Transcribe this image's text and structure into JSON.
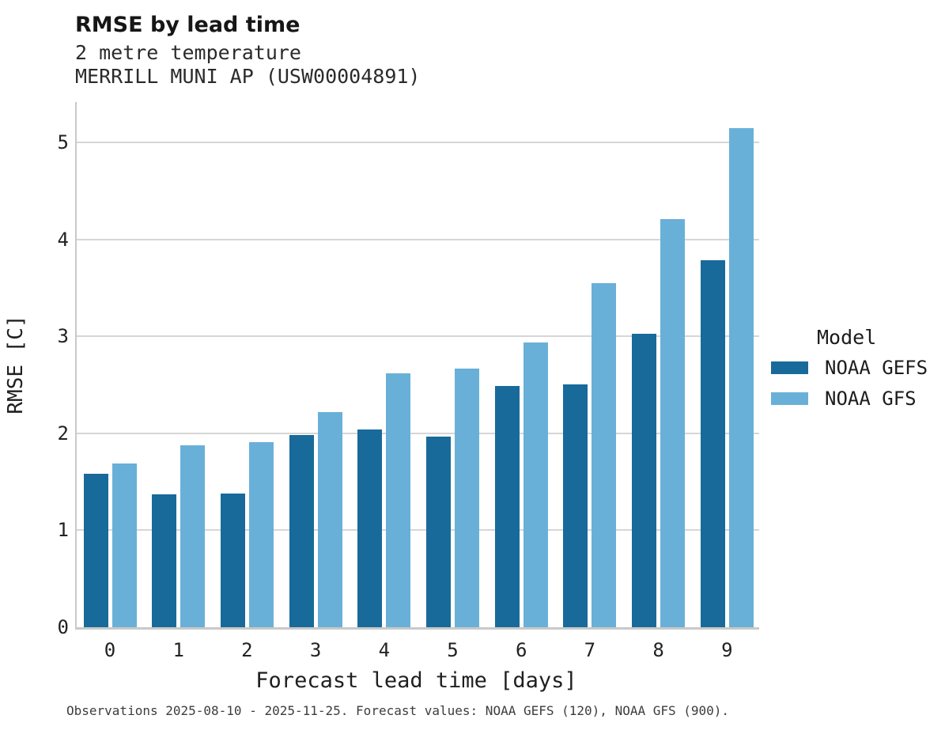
{
  "header": {
    "title": "RMSE by lead time",
    "subtitle_line1": "2 metre temperature",
    "subtitle_line2": "MERRILL MUNI AP (USW00004891)"
  },
  "chart_data": {
    "type": "bar",
    "title": "RMSE by lead time",
    "subtitle": [
      "2 metre temperature",
      "MERRILL MUNI AP (USW00004891)"
    ],
    "categories": [
      "0",
      "1",
      "2",
      "3",
      "4",
      "5",
      "6",
      "7",
      "8",
      "9"
    ],
    "series": [
      {
        "name": "NOAA GEFS",
        "color": "#186a9a",
        "values": [
          1.58,
          1.37,
          1.38,
          1.98,
          2.04,
          1.97,
          2.49,
          2.51,
          3.03,
          3.79
        ]
      },
      {
        "name": "NOAA GFS",
        "color": "#69b0d8",
        "values": [
          1.69,
          1.88,
          1.91,
          2.22,
          2.62,
          2.67,
          2.94,
          3.55,
          4.21,
          5.15
        ]
      }
    ],
    "xlabel": "Forecast lead time [days]",
    "ylabel": "RMSE [C]",
    "yticks": [
      0,
      1,
      2,
      3,
      4,
      5
    ],
    "ylim": [
      0,
      5.42
    ],
    "grid": "horizontal",
    "legend_title": "Model",
    "legend_position": "right"
  },
  "caption": "Observations 2025-08-10 - 2025-11-25. Forecast values: NOAA GEFS (120), NOAA GFS (900)."
}
